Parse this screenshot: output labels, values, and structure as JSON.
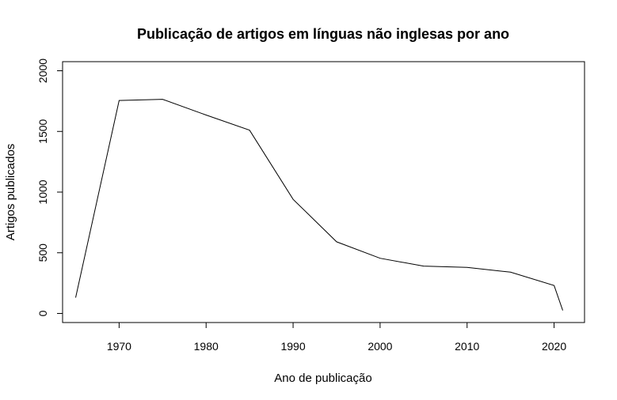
{
  "chart_data": {
    "type": "line",
    "title": "Publicação de artigos em línguas não inglesas por ano",
    "xlabel": "Ano de publicação",
    "ylabel": "Artigos publicados",
    "xlim": [
      1963.5,
      2023.5
    ],
    "ylim": [
      -75,
      2075
    ],
    "xticks": [
      1970,
      1980,
      1990,
      2000,
      2010,
      2020
    ],
    "yticks": [
      0,
      500,
      1000,
      1500,
      2000
    ],
    "grid": false,
    "legend": "none",
    "line_color": "#000000",
    "series": [
      {
        "x": [
          1965,
          1970,
          1975,
          1980,
          1985,
          1990,
          1995,
          2000,
          2005,
          2010,
          2015,
          2020,
          2021
        ],
        "y": [
          130,
          1755,
          1765,
          1635,
          1510,
          940,
          590,
          455,
          390,
          380,
          340,
          230,
          25
        ]
      }
    ]
  }
}
